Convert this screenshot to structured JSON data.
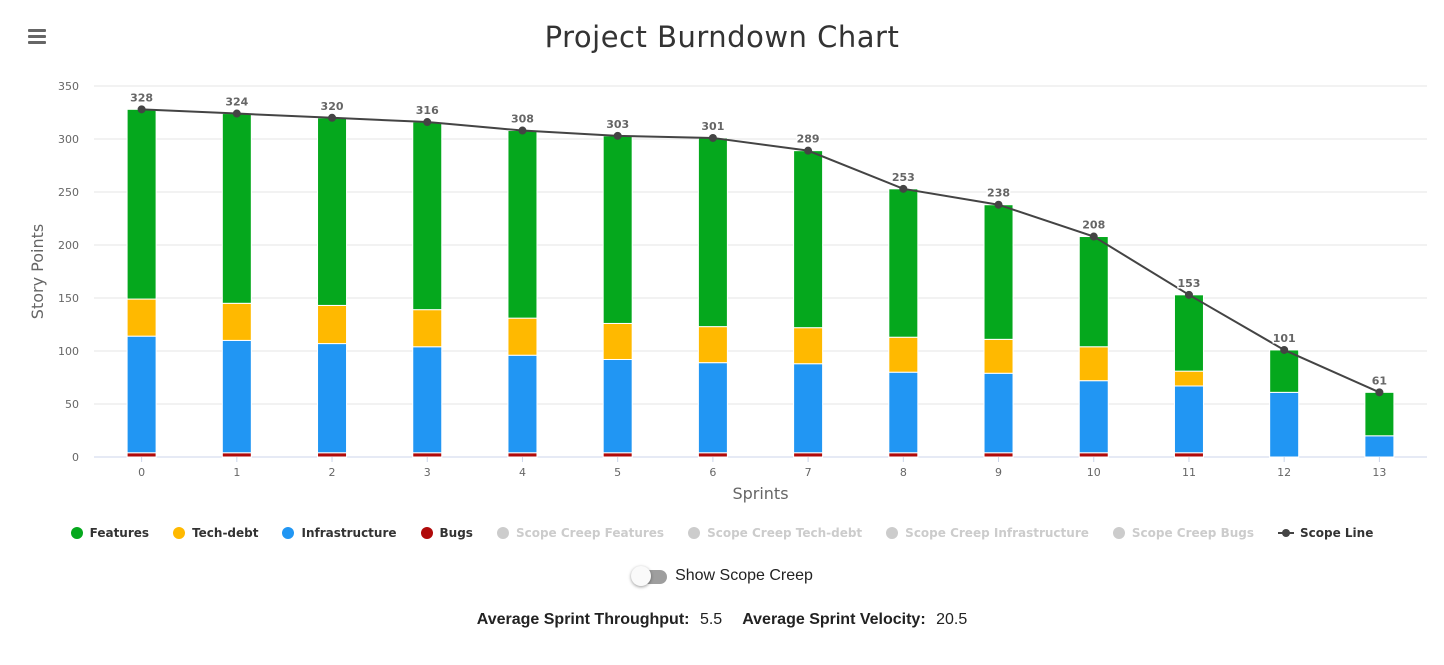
{
  "title": "Project Burndown Chart",
  "menu": {
    "icon": "hamburger-menu-icon"
  },
  "colors": {
    "features": "#05a81d",
    "techdebt": "#ffb900",
    "infrastructure": "#2196f3",
    "bugs": "#b00a0a",
    "scope_line": "#444444",
    "hidden_legend": "#cccccc"
  },
  "chart_data": {
    "type": "bar",
    "stacked": true,
    "title": "Project Burndown Chart",
    "xlabel": "Sprints",
    "ylabel": "Story Points",
    "ylim": [
      0,
      350
    ],
    "yticks": [
      0,
      50,
      100,
      150,
      200,
      250,
      300,
      350
    ],
    "grid": true,
    "legend_position": "bottom",
    "categories": [
      "0",
      "1",
      "2",
      "3",
      "4",
      "5",
      "6",
      "7",
      "8",
      "9",
      "10",
      "11",
      "12",
      "13"
    ],
    "series": [
      {
        "name": "Bugs",
        "values": [
          4,
          4,
          4,
          4,
          4,
          4,
          4,
          4,
          4,
          4,
          4,
          4,
          0,
          0
        ]
      },
      {
        "name": "Infrastructure",
        "values": [
          110,
          106,
          103,
          100,
          92,
          88,
          85,
          84,
          76,
          75,
          68,
          63,
          61,
          20
        ]
      },
      {
        "name": "Tech-debt",
        "values": [
          35,
          35,
          36,
          35,
          35,
          34,
          34,
          34,
          33,
          32,
          32,
          14,
          0,
          0
        ]
      },
      {
        "name": "Features",
        "values": [
          179,
          179,
          177,
          177,
          177,
          177,
          178,
          167,
          140,
          127,
          104,
          72,
          40,
          41
        ]
      }
    ],
    "scope_line": {
      "name": "Scope Line",
      "values": [
        328,
        324,
        320,
        316,
        308,
        303,
        301,
        289,
        253,
        238,
        208,
        153,
        101,
        61
      ]
    },
    "legend": [
      {
        "label": "Features",
        "color": "#05a81d",
        "visible": true,
        "symbol": "circle"
      },
      {
        "label": "Tech-debt",
        "color": "#ffb900",
        "visible": true,
        "symbol": "circle"
      },
      {
        "label": "Infrastructure",
        "color": "#2196f3",
        "visible": true,
        "symbol": "circle"
      },
      {
        "label": "Bugs",
        "color": "#b00a0a",
        "visible": true,
        "symbol": "circle"
      },
      {
        "label": "Scope Creep Features",
        "color": "#cccccc",
        "visible": false,
        "symbol": "circle"
      },
      {
        "label": "Scope Creep Tech-debt",
        "color": "#cccccc",
        "visible": false,
        "symbol": "circle"
      },
      {
        "label": "Scope Creep Infrastructure",
        "color": "#cccccc",
        "visible": false,
        "symbol": "circle"
      },
      {
        "label": "Scope Creep Bugs",
        "color": "#cccccc",
        "visible": false,
        "symbol": "circle"
      },
      {
        "label": "Scope Line",
        "color": "#444444",
        "visible": true,
        "symbol": "line"
      }
    ]
  },
  "toggle": {
    "label": "Show Scope Creep",
    "checked": false
  },
  "stats": {
    "throughput_label": "Average Sprint Throughput:",
    "throughput_value": "5.5",
    "velocity_label": "Average Sprint Velocity:",
    "velocity_value": "20.5"
  }
}
